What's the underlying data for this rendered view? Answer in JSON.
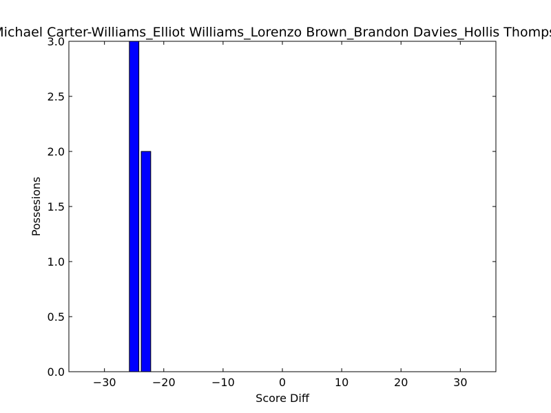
{
  "chart_data": {
    "type": "bar",
    "title": "Michael Carter-Williams_Elliot Williams_Lorenzo Brown_Brandon Davies_Hollis Thompson",
    "xlabel": "Score Diff",
    "ylabel": "Possesions",
    "xlim": [
      -36,
      36
    ],
    "ylim": [
      0,
      3.0
    ],
    "x_ticks": [
      -30,
      -20,
      -10,
      0,
      10,
      20,
      30
    ],
    "x_tick_labels": [
      "−30",
      "−20",
      "−10",
      "0",
      "10",
      "20",
      "30"
    ],
    "y_ticks": [
      0.0,
      0.5,
      1.0,
      1.5,
      2.0,
      2.5,
      3.0
    ],
    "y_tick_labels": [
      "0.0",
      "0.5",
      "1.0",
      "1.5",
      "2.0",
      "2.5",
      "3.0"
    ],
    "grid": false,
    "bar_color": "#0000ff",
    "edge_color": "#000000",
    "bars": [
      {
        "x": -25,
        "value": 3
      },
      {
        "x": -23,
        "value": 2
      }
    ]
  }
}
